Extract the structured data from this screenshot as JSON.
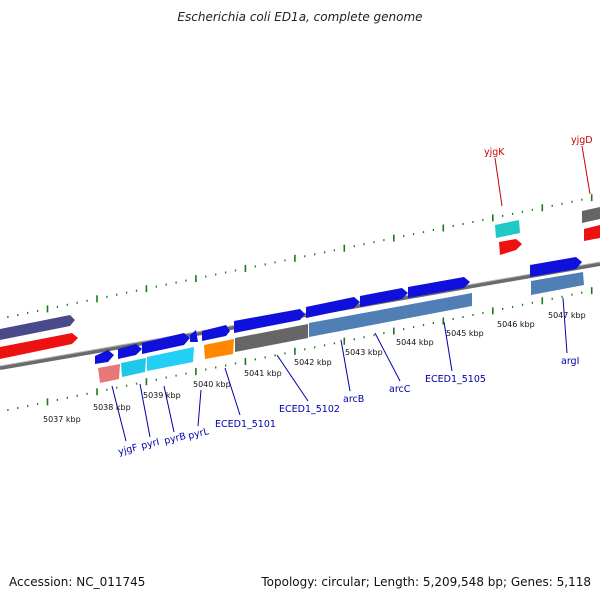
{
  "title": "Escherichia coli ED1a, complete genome",
  "footer": {
    "accession": "Accession: NC_011745",
    "topology": "Topology: circular; Length: 5,209,548 bp; Genes: 5,118"
  },
  "colors": {
    "backbone": "#888888",
    "tick": "#1a7a1a",
    "gene_label": "#0000aa",
    "top_label": "#cc0000",
    "blue_cds": "#1010dd",
    "red_cds": "#ee1111",
    "gray": "#666666",
    "steel": "#4f7fb5",
    "cyan": "#20d0e0",
    "orange": "#ff8800",
    "pink": "#e87878",
    "slate": "#4a4a8a"
  },
  "ticks": [
    "5037 kbp",
    "5038 kbp",
    "5039 kbp",
    "5040 kbp",
    "5041 kbp",
    "5042 kbp",
    "5043 kbp",
    "5044 kbp",
    "5045 kbp",
    "5046 kbp",
    "5047 kbp"
  ],
  "lower_labels": [
    "yjgF",
    "pyrI",
    "pyrB",
    "pyrL",
    "ECED1_5101",
    "ECED1_5102",
    "arcB",
    "arcC",
    "ECED1_5105",
    "argI"
  ],
  "upper_labels": [
    "yjgK",
    "yjgD"
  ]
}
